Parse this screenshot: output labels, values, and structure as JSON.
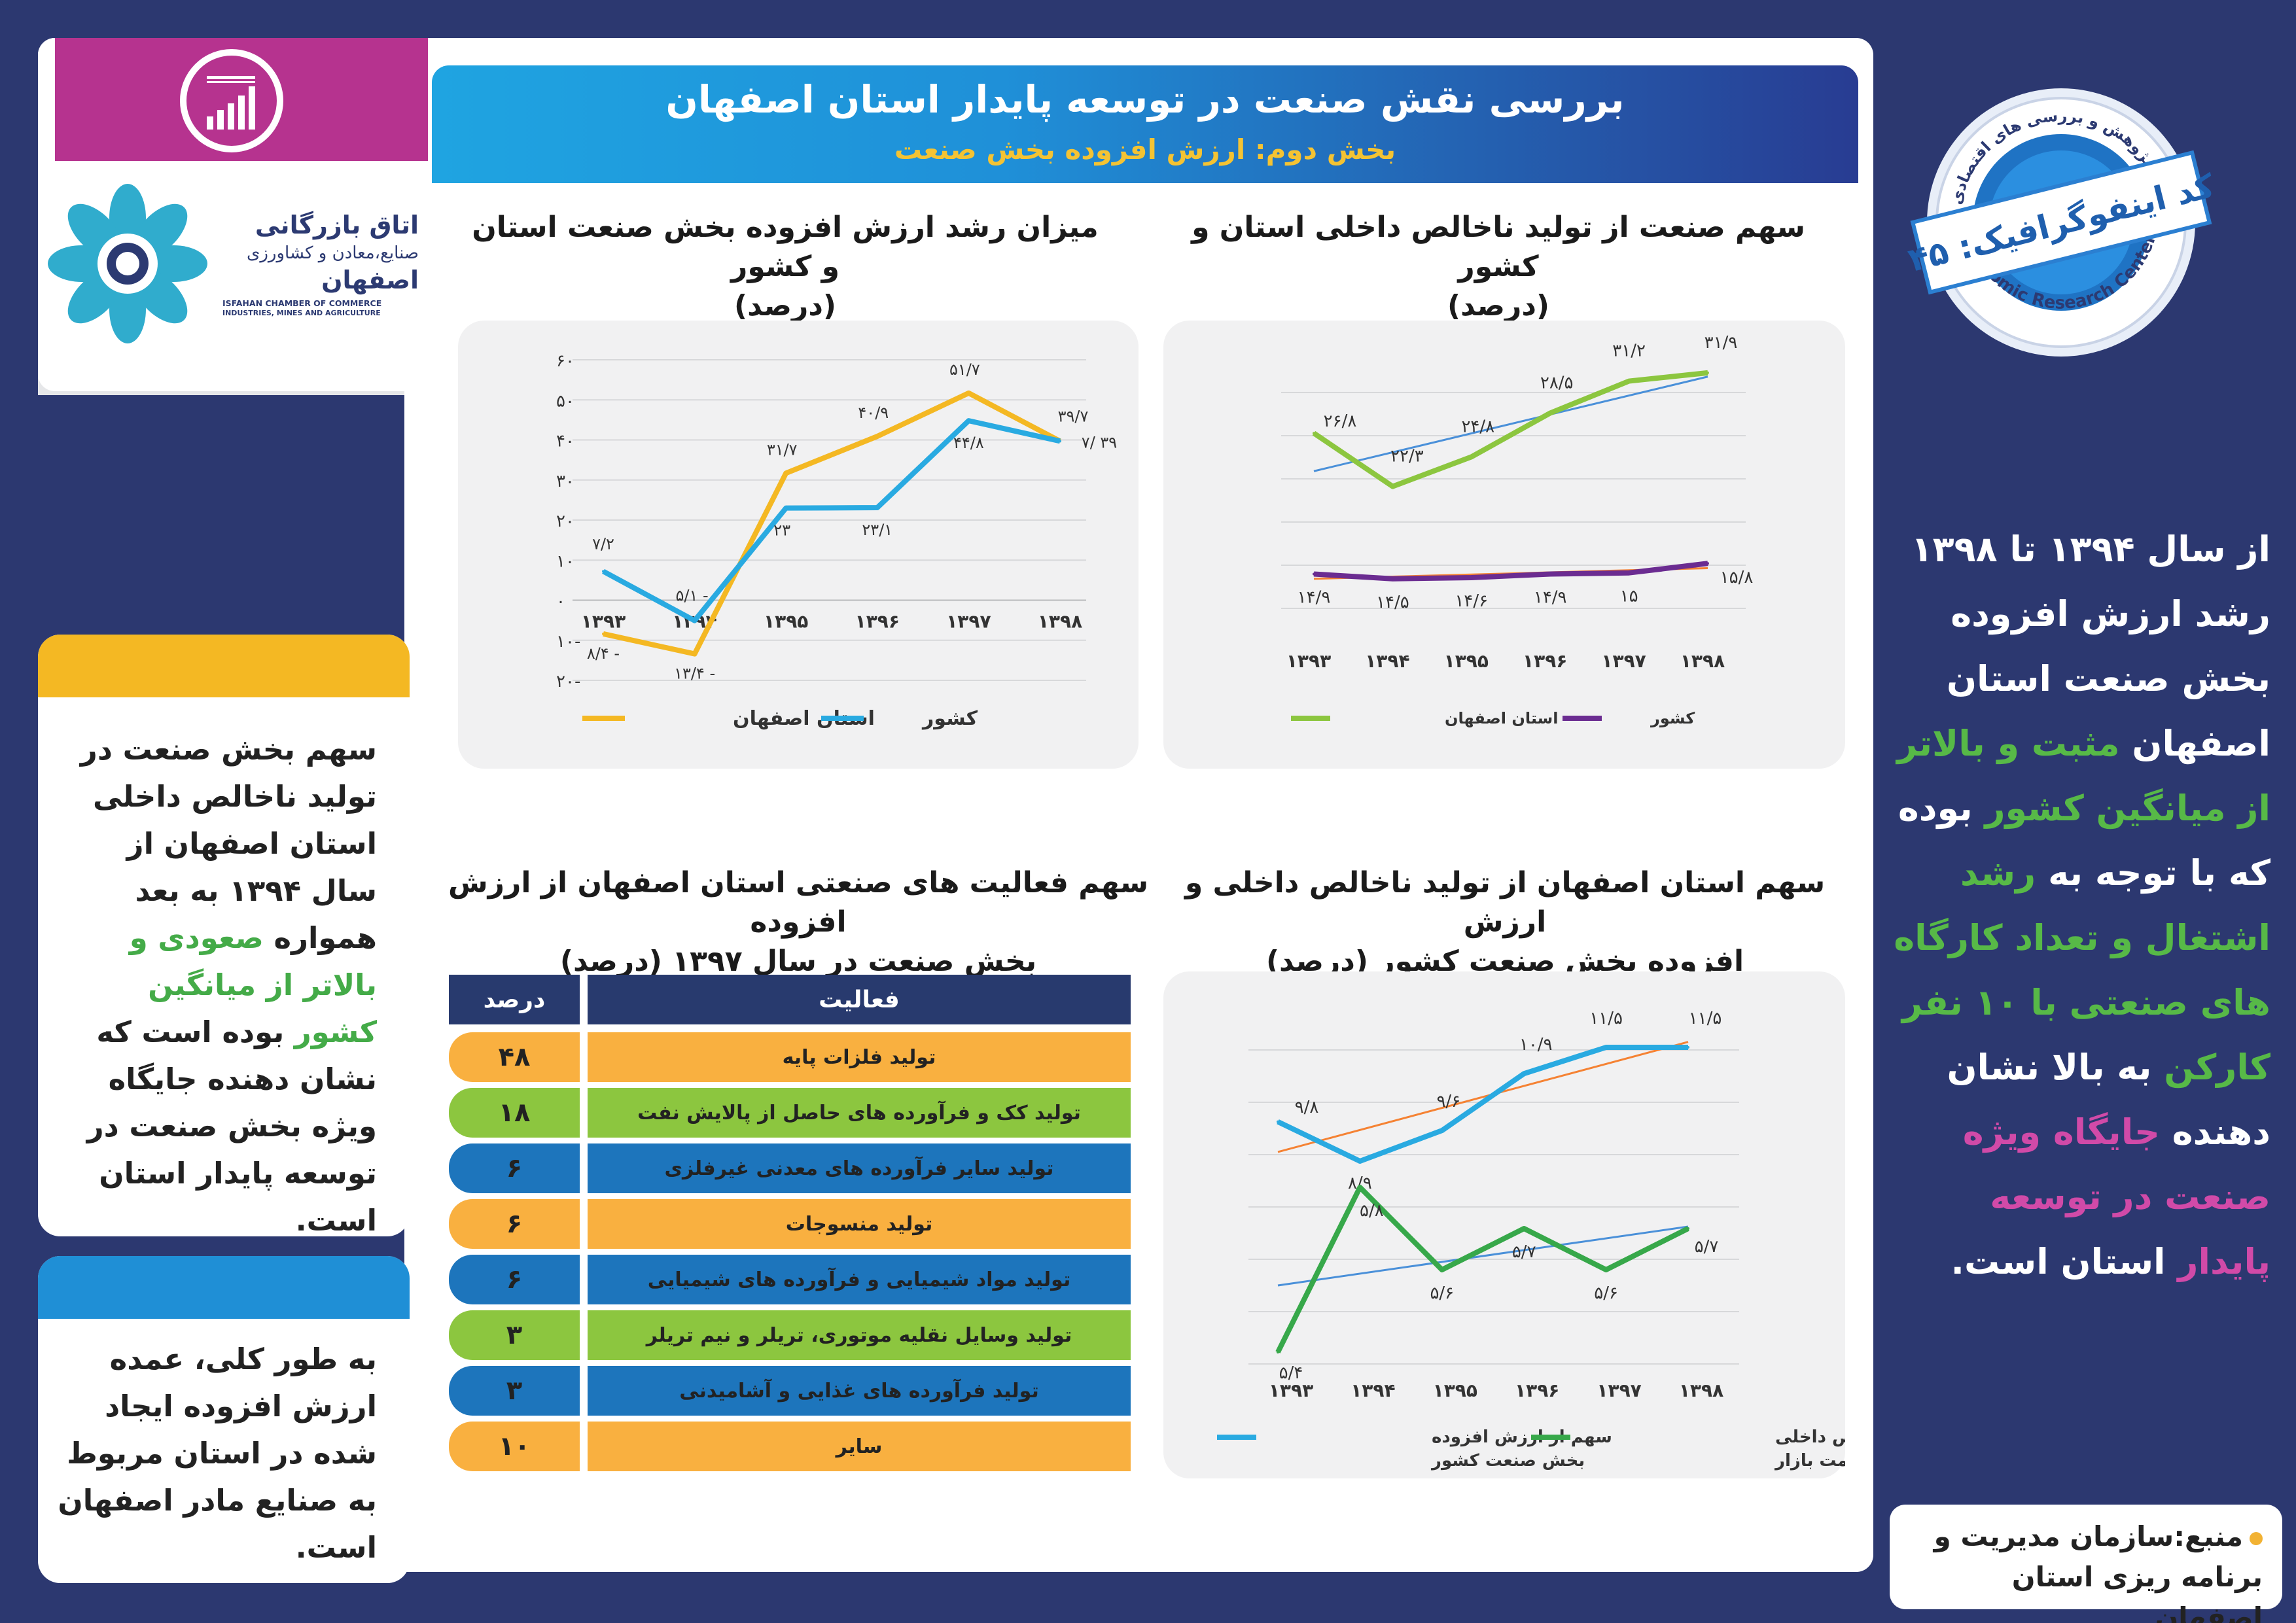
{
  "header": {
    "title": "بررسی نقش صنعت در توسعه پایدار استان اصفهان",
    "subtitle": "بخش دوم: ارزش افزوده بخش صنعت"
  },
  "logo": {
    "fa_line1": "اتاق بازرگانی",
    "fa_line2": "صنایع،معادن و کشاورزی",
    "fa_line3": "اصفهان",
    "en_line1": "ISFAHAN CHAMBER OF COMMERCE",
    "en_line2": "INDUSTRIES, MINES AND AGRICULTURE"
  },
  "badge": {
    "top_text": "واحد پژوهش و بررسی های اقتصادی",
    "code_text": "کد اینفوگرافیک: ۴۵",
    "bottom_text": "Economic Research Center"
  },
  "left_card1": {
    "p1": "سهم بخش صنعت در تولید ناخالص داخلی استان اصفهان از سال ۱۳۹۴ به بعد همواره",
    "hl1": "صعودی و بالاتر از میانگین کشور",
    "p2": "بوده است که نشان دهنده جایگاه ویژه بخش صنعت در توسعه پایدار استان است."
  },
  "left_card2": {
    "p1": "به طور کلی، عمده ارزش افزوده ایجاد شده در استان مربوط به صنایع مادر اصفهان است."
  },
  "right_text": {
    "p1": "از سال ۱۳۹۴ تا ۱۳۹۸ رشد ارزش افزوده بخش صنعت استان اصفهان",
    "hl1": "مثبت و بالاتر از میانگین کشور",
    "p2": "بوده که با توجه به",
    "hl2": "رشد اشتغال و تعداد کارگاه های صنعتی با ۱۰ نفر کارکن",
    "p3": "به بالا نشان دهنده",
    "hl3": "جایگاه ویژه صنعت در توسعه پایدار",
    "p4": "استان است."
  },
  "source": {
    "text": "منبع:سازمان مدیریت و برنامه ریزی استان اصفهان"
  },
  "colors": {
    "background": "#2c3870",
    "yellow": "#f4b823",
    "blue": "#29aae1",
    "green": "#8cc63f",
    "purple": "#6b2c91",
    "dark_green": "#37a84a",
    "trend_orange": "#f58233",
    "trend_blue": "#4a90d9",
    "table_orange": "#f9b040",
    "table_green": "#8cc63f",
    "table_blue": "#1d75bc",
    "table_head": "#283a6e"
  },
  "chart_data": [
    {
      "id": "growth",
      "type": "line",
      "title_line1": "میزان رشد ارزش افزوده بخش صنعت استان و کشور",
      "title_line2": "(درصد)",
      "categories": [
        "۱۳۹۳",
        "۱۳۹۴",
        "۱۳۹۵",
        "۱۳۹۶",
        "۱۳۹۷",
        "۱۳۹۸"
      ],
      "y_ticks": [
        "-۲۰",
        "-۱۰",
        "۰",
        "۱۰",
        "۲۰",
        "۳۰",
        "۴۰",
        "۵۰",
        "۶۰"
      ],
      "ylim": [
        -20,
        60
      ],
      "series": [
        {
          "name": "استان اصفهان",
          "color": "#f4b823",
          "values": [
            -8.4,
            -13.4,
            31.7,
            40.9,
            51.7,
            39.7
          ],
          "labels": [
            "- ۸/۴",
            "- ۱۳/۴",
            "۳۱/۷",
            "۴۰/۹",
            "۵۱/۷",
            "۳۹/۷"
          ]
        },
        {
          "name": "کشور",
          "color": "#29aae1",
          "values": [
            7.2,
            -5.1,
            23,
            23.1,
            44.8,
            39.7
          ],
          "labels": [
            "۷/۲",
            "- ۵/۱",
            "۲۳",
            "۲۳/۱",
            "۴۴/۸",
            "۳۹ /۷"
          ]
        }
      ]
    },
    {
      "id": "share",
      "type": "line",
      "title_line1": "سهم صنعت از تولید ناخالص داخلی استان و کشور",
      "title_line2": "(درصد)",
      "categories": [
        "۱۳۹۳",
        "۱۳۹۴",
        "۱۳۹۵",
        "۱۳۹۶",
        "۱۳۹۷",
        "۱۳۹۸"
      ],
      "ylim": [
        12,
        33
      ],
      "series": [
        {
          "name": "استان اصفهان",
          "color": "#8cc63f",
          "values": [
            26.8,
            22.3,
            24.8,
            28.5,
            31.2,
            31.9
          ],
          "labels": [
            "۲۶/۸",
            "۲۲/۳",
            "۲۴/۸",
            "۲۸/۵",
            "۳۱/۲",
            "۳۱/۹"
          ]
        },
        {
          "name": "کشور",
          "color": "#6b2c91",
          "values": [
            14.9,
            14.5,
            14.6,
            14.9,
            15,
            15.8
          ],
          "labels": [
            "۱۴/۹",
            "۱۴/۵",
            "۱۴/۶",
            "۱۴/۹",
            "۱۵",
            "۱۵/۸"
          ]
        }
      ]
    },
    {
      "id": "table",
      "type": "table",
      "title_line1": "سهم فعالیت های صنعتی استان اصفهان از ارزش افزوده",
      "title_line2": "بخش صنعت در سال ۱۳۹۷ (درصد)",
      "columns": [
        "فعالیت",
        "درصد"
      ],
      "rows": [
        {
          "activity": "تولید فلزات پایه",
          "pct": "۴۸",
          "color": "#f9b040"
        },
        {
          "activity": "تولید کک و فرآورده های حاصل از پالایش نفت",
          "pct": "۱۸",
          "color": "#8cc63f"
        },
        {
          "activity": "تولید سایر فرآورده های معدنی غیرفلزی",
          "pct": "۶",
          "color": "#1d75bc"
        },
        {
          "activity": "تولید منسوجات",
          "pct": "۶",
          "color": "#f9b040"
        },
        {
          "activity": "تولید مواد شیمیایی و فرآورده های شیمیایی",
          "pct": "۶",
          "color": "#1d75bc"
        },
        {
          "activity": "تولید وسایل نقلیه موتوری، تریلر و نیم تریلر",
          "pct": "۳",
          "color": "#8cc63f"
        },
        {
          "activity": "تولید فرآورده های غذایی و آشامیدنی",
          "pct": "۳",
          "color": "#1d75bc"
        },
        {
          "activity": "سایر",
          "pct": "۱۰",
          "color": "#f9b040"
        }
      ]
    },
    {
      "id": "isfahan_share",
      "type": "line",
      "title_line1": "سهم استان اصفهان از تولید ناخالص داخلی و ارزش",
      "title_line2": "افزوده بخش صنعت کشور (درصد)",
      "categories": [
        "۱۳۹۳",
        "۱۳۹۴",
        "۱۳۹۵",
        "۱۳۹۶",
        "۱۳۹۷",
        "۱۳۹۸"
      ],
      "ylim": [
        5,
        12
      ],
      "series": [
        {
          "name": "سهم از ارزش افزوده بخش صنعت کشور",
          "name_line1": "سهم از ارزش افزوده",
          "name_line2": "بخش صنعت کشور",
          "color": "#29aae1",
          "values": [
            9.8,
            8.9,
            9.6,
            10.9,
            11.5,
            11.5
          ],
          "labels": [
            "۹/۸",
            "۸/۹",
            "۹/۶",
            "۱۰/۹",
            "۱۱/۵",
            "۱۱/۵"
          ]
        },
        {
          "name": "سهم از تولید ناخالص داخلی کشور به قیمت بازار",
          "name_line1": "سهم از تولید ناخالص داخلی",
          "name_line2": "کشور به قیمت بازار",
          "color": "#37a84a",
          "values": [
            5.4,
            5.8,
            5.6,
            5.7,
            5.6,
            5.7
          ],
          "labels": [
            "۵/۴",
            "۵/۸",
            "۵/۶",
            "۵/۷",
            "۵/۶",
            "۵/۷"
          ]
        }
      ]
    }
  ]
}
